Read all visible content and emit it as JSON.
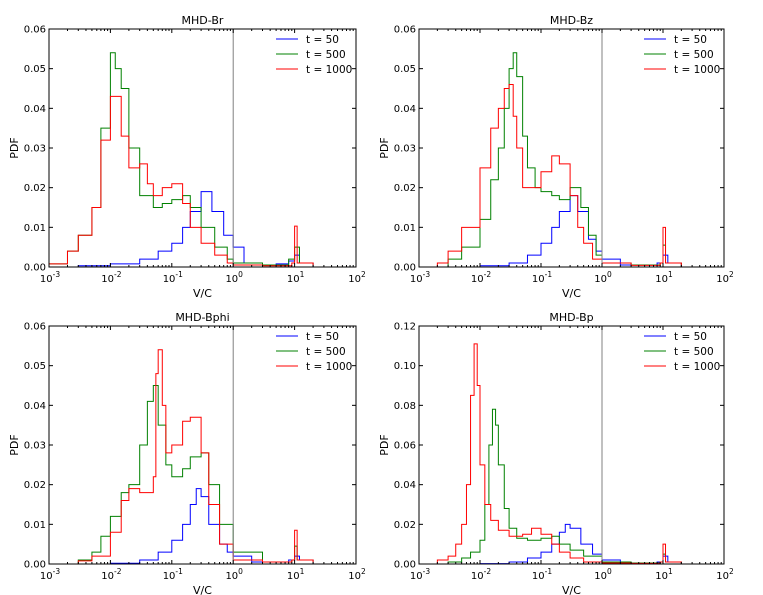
{
  "colors": {
    "t50": "#0000ff",
    "t500": "#008000",
    "t1000": "#ff0000",
    "refline": "#808080"
  },
  "chart_data": [
    {
      "type": "line",
      "title": "MHD-Br",
      "xlabel": "V/C",
      "ylabel": "PDF",
      "xscale": "log",
      "xlim": [
        0.001,
        100
      ],
      "ylim": [
        0,
        0.06
      ],
      "xtick_exponents": [
        "-3",
        "-2",
        "-1",
        "0",
        "1",
        "2"
      ],
      "ytick_labels": [
        "0.00",
        "0.01",
        "0.02",
        "0.03",
        "0.04",
        "0.05",
        "0.06"
      ],
      "yticks": [
        0,
        0.01,
        0.02,
        0.03,
        0.04,
        0.05,
        0.06
      ],
      "vline_x": 1,
      "legend_loc": "top-right",
      "series": [
        {
          "name": "t = 50",
          "color": "#0000ff",
          "x": [
            0.001,
            0.003,
            0.01,
            0.03,
            0.06,
            0.1,
            0.15,
            0.2,
            0.3,
            0.45,
            0.7,
            1,
            1.5,
            3,
            5,
            8,
            10,
            12,
            20,
            100
          ],
          "y": [
            0,
            0.0003,
            0.0008,
            0.002,
            0.004,
            0.006,
            0.01,
            0.014,
            0.019,
            0.014,
            0.008,
            0.005,
            0.001,
            0.0005,
            0.0008,
            0.0015,
            0.003,
            0.001,
            0,
            0
          ]
        },
        {
          "name": "t = 500",
          "color": "#008000",
          "x": [
            0.001,
            0.002,
            0.003,
            0.005,
            0.007,
            0.01,
            0.012,
            0.015,
            0.02,
            0.03,
            0.05,
            0.07,
            0.1,
            0.15,
            0.2,
            0.3,
            0.5,
            0.8,
            1,
            3,
            8,
            10,
            12,
            20,
            100
          ],
          "y": [
            0.0008,
            0.004,
            0.008,
            0.015,
            0.035,
            0.054,
            0.05,
            0.045,
            0.03,
            0.018,
            0.015,
            0.016,
            0.017,
            0.018,
            0.015,
            0.01,
            0.005,
            0.002,
            0.001,
            0.0005,
            0.002,
            0.005,
            0.001,
            0,
            0
          ]
        },
        {
          "name": "t = 1000",
          "color": "#ff0000",
          "x": [
            0.001,
            0.002,
            0.003,
            0.005,
            0.007,
            0.01,
            0.015,
            0.02,
            0.03,
            0.04,
            0.05,
            0.07,
            0.1,
            0.15,
            0.2,
            0.3,
            0.5,
            0.8,
            1,
            3,
            9,
            10,
            11,
            20,
            100
          ],
          "y": [
            0.0008,
            0.004,
            0.008,
            0.015,
            0.032,
            0.043,
            0.033,
            0.025,
            0.026,
            0.021,
            0.018,
            0.02,
            0.021,
            0.016,
            0.01,
            0.006,
            0.003,
            0.001,
            0.0005,
            0.0003,
            0.001,
            0.0103,
            0.001,
            0,
            0
          ]
        }
      ]
    },
    {
      "type": "line",
      "title": "MHD-Bz",
      "xlabel": "V/C",
      "ylabel": "PDF",
      "xscale": "log",
      "xlim": [
        0.001,
        100
      ],
      "ylim": [
        0,
        0.06
      ],
      "xtick_exponents": [
        "-3",
        "-2",
        "-1",
        "0",
        "1",
        "2"
      ],
      "ytick_labels": [
        "0.00",
        "0.01",
        "0.02",
        "0.03",
        "0.04",
        "0.05",
        "0.06"
      ],
      "yticks": [
        0,
        0.01,
        0.02,
        0.03,
        0.04,
        0.05,
        0.06
      ],
      "vline_x": 1,
      "legend_loc": "top-right",
      "series": [
        {
          "name": "t = 50",
          "color": "#0000ff",
          "x": [
            0.001,
            0.01,
            0.03,
            0.06,
            0.1,
            0.15,
            0.2,
            0.3,
            0.4,
            0.6,
            0.8,
            1,
            2,
            5,
            8,
            10,
            12,
            20,
            100
          ],
          "y": [
            0,
            0.0003,
            0.001,
            0.003,
            0.006,
            0.01,
            0.014,
            0.018,
            0.014,
            0.007,
            0.004,
            0.002,
            0.0005,
            0.0005,
            0.001,
            0.003,
            0.001,
            0,
            0
          ]
        },
        {
          "name": "t = 500",
          "color": "#008000",
          "x": [
            0.001,
            0.003,
            0.005,
            0.01,
            0.015,
            0.02,
            0.025,
            0.03,
            0.035,
            0.04,
            0.05,
            0.06,
            0.08,
            0.1,
            0.15,
            0.2,
            0.3,
            0.45,
            0.6,
            0.8,
            1,
            3,
            9,
            10,
            11,
            20,
            100
          ],
          "y": [
            0,
            0.002,
            0.005,
            0.012,
            0.022,
            0.03,
            0.04,
            0.05,
            0.054,
            0.048,
            0.033,
            0.025,
            0.02,
            0.019,
            0.018,
            0.017,
            0.02,
            0.015,
            0.008,
            0.003,
            0.001,
            0.0005,
            0.001,
            0.0055,
            0.001,
            0,
            0
          ]
        },
        {
          "name": "t = 1000",
          "color": "#ff0000",
          "x": [
            0.001,
            0.002,
            0.003,
            0.005,
            0.01,
            0.015,
            0.02,
            0.025,
            0.03,
            0.035,
            0.04,
            0.05,
            0.07,
            0.1,
            0.15,
            0.2,
            0.3,
            0.4,
            0.5,
            0.7,
            1,
            3,
            9,
            10,
            11,
            20,
            100
          ],
          "y": [
            0,
            0.001,
            0.004,
            0.01,
            0.025,
            0.035,
            0.04,
            0.045,
            0.046,
            0.038,
            0.03,
            0.02,
            0.02,
            0.024,
            0.028,
            0.026,
            0.018,
            0.01,
            0.006,
            0.002,
            0.001,
            0.0004,
            0.001,
            0.01,
            0.001,
            0,
            0
          ]
        }
      ]
    },
    {
      "type": "line",
      "title": "MHD-Bphi",
      "xlabel": "V/C",
      "ylabel": "PDF",
      "xscale": "log",
      "xlim": [
        0.001,
        100
      ],
      "ylim": [
        0,
        0.06
      ],
      "xtick_exponents": [
        "-3",
        "-2",
        "-1",
        "0",
        "1",
        "2"
      ],
      "ytick_labels": [
        "0.00",
        "0.01",
        "0.02",
        "0.03",
        "0.04",
        "0.05",
        "0.06"
      ],
      "yticks": [
        0,
        0.01,
        0.02,
        0.03,
        0.04,
        0.05,
        0.06
      ],
      "vline_x": 1,
      "legend_loc": "top-right",
      "series": [
        {
          "name": "t = 50",
          "color": "#0000ff",
          "x": [
            0.001,
            0.01,
            0.03,
            0.06,
            0.1,
            0.15,
            0.2,
            0.25,
            0.3,
            0.4,
            0.6,
            0.8,
            1,
            2,
            5,
            8,
            10,
            12,
            20,
            100
          ],
          "y": [
            0,
            0.0002,
            0.001,
            0.003,
            0.006,
            0.01,
            0.015,
            0.019,
            0.017,
            0.01,
            0.005,
            0.003,
            0.002,
            0.0005,
            0.0005,
            0.001,
            0.002,
            0.001,
            0,
            0
          ]
        },
        {
          "name": "t = 500",
          "color": "#008000",
          "x": [
            0.001,
            0.003,
            0.005,
            0.007,
            0.01,
            0.015,
            0.02,
            0.03,
            0.04,
            0.05,
            0.06,
            0.08,
            0.1,
            0.15,
            0.2,
            0.3,
            0.4,
            0.6,
            1,
            3,
            9,
            10,
            11,
            20,
            100
          ],
          "y": [
            0,
            0.001,
            0.003,
            0.007,
            0.012,
            0.018,
            0.02,
            0.03,
            0.041,
            0.045,
            0.035,
            0.025,
            0.022,
            0.024,
            0.027,
            0.028,
            0.02,
            0.01,
            0.003,
            0.0005,
            0.001,
            0.0045,
            0.001,
            0,
            0
          ]
        },
        {
          "name": "t = 1000",
          "color": "#ff0000",
          "x": [
            0.001,
            0.003,
            0.005,
            0.01,
            0.015,
            0.02,
            0.03,
            0.04,
            0.05,
            0.055,
            0.06,
            0.07,
            0.08,
            0.1,
            0.15,
            0.2,
            0.3,
            0.4,
            0.6,
            1,
            3,
            9,
            10,
            11,
            20,
            100
          ],
          "y": [
            0,
            0.0008,
            0.002,
            0.008,
            0.016,
            0.019,
            0.018,
            0.018,
            0.022,
            0.048,
            0.054,
            0.04,
            0.028,
            0.03,
            0.036,
            0.037,
            0.028,
            0.015,
            0.005,
            0.001,
            0.0005,
            0.001,
            0.0085,
            0.001,
            0,
            0
          ]
        }
      ]
    },
    {
      "type": "line",
      "title": "MHD-Bp",
      "xlabel": "V/C",
      "ylabel": "PDF",
      "xscale": "log",
      "xlim": [
        0.001,
        100
      ],
      "ylim": [
        0,
        0.12
      ],
      "xtick_exponents": [
        "-3",
        "-2",
        "-1",
        "0",
        "1",
        "2"
      ],
      "ytick_labels": [
        "0.00",
        "0.02",
        "0.04",
        "0.06",
        "0.08",
        "0.10",
        "0.12"
      ],
      "yticks": [
        0,
        0.02,
        0.04,
        0.06,
        0.08,
        0.1,
        0.12
      ],
      "vline_x": 1,
      "legend_loc": "top-right",
      "series": [
        {
          "name": "t = 50",
          "color": "#0000ff",
          "x": [
            0.001,
            0.01,
            0.03,
            0.06,
            0.1,
            0.15,
            0.2,
            0.25,
            0.3,
            0.45,
            0.7,
            1,
            2,
            5,
            8,
            10,
            12,
            20,
            100
          ],
          "y": [
            0,
            0.0002,
            0.001,
            0.003,
            0.006,
            0.01,
            0.016,
            0.02,
            0.018,
            0.01,
            0.005,
            0.002,
            0.0005,
            0.0005,
            0.001,
            0.004,
            0.001,
            0,
            0
          ]
        },
        {
          "name": "t = 500",
          "color": "#008000",
          "x": [
            0.001,
            0.003,
            0.005,
            0.007,
            0.01,
            0.012,
            0.014,
            0.016,
            0.018,
            0.02,
            0.025,
            0.03,
            0.04,
            0.06,
            0.1,
            0.15,
            0.2,
            0.3,
            0.5,
            1,
            3,
            9,
            10,
            11,
            20,
            100
          ],
          "y": [
            0,
            0.001,
            0.003,
            0.006,
            0.012,
            0.03,
            0.06,
            0.078,
            0.07,
            0.05,
            0.028,
            0.018,
            0.013,
            0.012,
            0.013,
            0.014,
            0.01,
            0.007,
            0.004,
            0.001,
            0.0005,
            0.001,
            0.005,
            0.001,
            0,
            0
          ]
        },
        {
          "name": "t = 1000",
          "color": "#ff0000",
          "x": [
            0.001,
            0.002,
            0.003,
            0.004,
            0.005,
            0.006,
            0.007,
            0.008,
            0.009,
            0.01,
            0.012,
            0.015,
            0.02,
            0.03,
            0.05,
            0.07,
            0.1,
            0.15,
            0.2,
            0.3,
            0.5,
            1,
            3,
            9,
            10,
            11,
            20,
            100
          ],
          "y": [
            0,
            0.002,
            0.004,
            0.01,
            0.02,
            0.04,
            0.085,
            0.111,
            0.09,
            0.05,
            0.03,
            0.022,
            0.017,
            0.014,
            0.015,
            0.018,
            0.015,
            0.01,
            0.006,
            0.003,
            0.001,
            0.0005,
            0.0003,
            0.001,
            0.01,
            0.001,
            0,
            0
          ]
        }
      ]
    }
  ]
}
